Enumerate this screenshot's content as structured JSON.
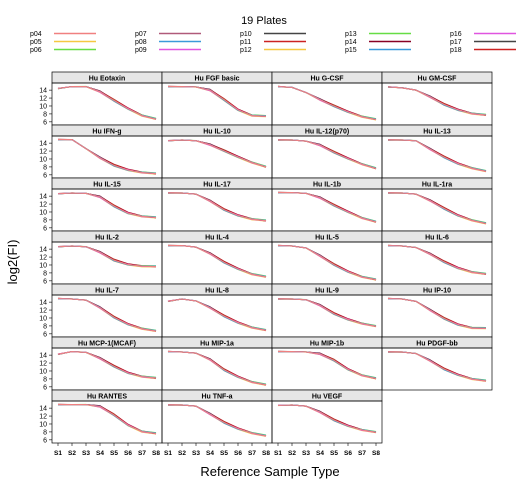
{
  "chart_data": {
    "type": "line",
    "title": "19 Plates",
    "xlabel": "Reference Sample Type",
    "ylabel": "log2(FI)",
    "x": [
      "S1",
      "S2",
      "S3",
      "S4",
      "S5",
      "S6",
      "S7",
      "S8"
    ],
    "yticks": [
      6,
      8,
      10,
      12,
      14
    ],
    "ylim": [
      5.2,
      15.8
    ],
    "legend_position": "top",
    "grid": false,
    "legend": [
      {
        "name": "p04",
        "color": "#f08080"
      },
      {
        "name": "p05",
        "color": "#f5c842"
      },
      {
        "name": "p06",
        "color": "#66dd44"
      },
      {
        "name": "p07",
        "color": "#b05a7a"
      },
      {
        "name": "p08",
        "color": "#3a9ad9"
      },
      {
        "name": "p09",
        "color": "#e055e0"
      },
      {
        "name": "p10",
        "color": "#444444"
      },
      {
        "name": "p11",
        "color": "#cc2222"
      },
      {
        "name": "p12",
        "color": "#f5c842"
      },
      {
        "name": "p13",
        "color": "#66dd44"
      },
      {
        "name": "p14",
        "color": "#880022"
      },
      {
        "name": "p15",
        "color": "#3a9ad9"
      },
      {
        "name": "p16",
        "color": "#e055e0"
      },
      {
        "name": "p17",
        "color": "#444444"
      },
      {
        "name": "p18",
        "color": "#cc2222"
      }
    ],
    "panels": [
      {
        "name": "Hu Eotaxin",
        "values": [
          14.4,
          14.9,
          14.9,
          13.6,
          11.4,
          9.3,
          7.6,
          6.7
        ]
      },
      {
        "name": "Hu FGF basic",
        "values": [
          14.9,
          14.9,
          14.8,
          14.0,
          11.6,
          9.0,
          7.6,
          7.4
        ]
      },
      {
        "name": "Hu G-CSF",
        "values": [
          14.9,
          14.7,
          13.4,
          11.6,
          10.0,
          8.5,
          7.3,
          6.6
        ]
      },
      {
        "name": "Hu GM-CSF",
        "values": [
          14.8,
          14.6,
          14.0,
          12.3,
          10.4,
          9.0,
          8.1,
          7.7
        ]
      },
      {
        "name": "Hu IFN-g",
        "values": [
          14.9,
          14.9,
          12.6,
          10.3,
          8.4,
          7.2,
          6.6,
          6.3
        ]
      },
      {
        "name": "Hu IL-10",
        "values": [
          14.6,
          14.8,
          14.6,
          13.6,
          12.1,
          10.5,
          9.1,
          8.0
        ]
      },
      {
        "name": "Hu IL-12(p70)",
        "values": [
          14.8,
          14.8,
          14.5,
          13.5,
          11.7,
          10.1,
          8.7,
          7.6
        ]
      },
      {
        "name": "Hu IL-13",
        "values": [
          14.8,
          14.8,
          14.6,
          12.5,
          10.5,
          8.8,
          7.7,
          6.9
        ]
      },
      {
        "name": "Hu IL-15",
        "values": [
          14.6,
          14.8,
          14.7,
          13.8,
          11.5,
          9.7,
          8.9,
          8.6
        ]
      },
      {
        "name": "Hu IL-17",
        "values": [
          14.8,
          14.8,
          14.5,
          12.8,
          10.6,
          9.1,
          8.2,
          7.8
        ]
      },
      {
        "name": "Hu IL-1b",
        "values": [
          14.9,
          14.9,
          14.7,
          13.6,
          11.7,
          10.0,
          8.5,
          7.5
        ]
      },
      {
        "name": "Hu IL-1ra",
        "values": [
          14.8,
          14.8,
          14.5,
          12.9,
          10.9,
          9.1,
          7.9,
          7.1
        ]
      },
      {
        "name": "Hu IL-2",
        "values": [
          14.6,
          14.8,
          14.6,
          13.2,
          11.2,
          10.1,
          9.7,
          9.6
        ]
      },
      {
        "name": "Hu IL-4",
        "values": [
          14.9,
          14.9,
          14.5,
          12.9,
          10.7,
          9.0,
          7.7,
          7.0
        ]
      },
      {
        "name": "Hu IL-5",
        "values": [
          14.9,
          14.8,
          14.3,
          12.3,
          10.1,
          8.3,
          7.0,
          6.3
        ]
      },
      {
        "name": "Hu IL-6",
        "values": [
          14.9,
          14.8,
          14.4,
          12.8,
          10.8,
          9.2,
          8.2,
          7.7
        ]
      },
      {
        "name": "Hu IL-7",
        "values": [
          14.9,
          14.8,
          14.5,
          12.6,
          10.2,
          8.4,
          7.3,
          6.7
        ]
      },
      {
        "name": "Hu IL-8",
        "values": [
          14.2,
          14.8,
          14.3,
          12.6,
          10.5,
          8.8,
          7.6,
          6.9
        ]
      },
      {
        "name": "Hu IL-9",
        "values": [
          14.8,
          14.8,
          14.6,
          13.2,
          11.1,
          9.6,
          8.6,
          7.9
        ]
      },
      {
        "name": "Hu IP-10",
        "values": [
          14.9,
          14.8,
          14.2,
          12.0,
          9.9,
          8.3,
          7.5,
          7.4
        ]
      },
      {
        "name": "Hu MCP-1(MCAF)",
        "values": [
          14.2,
          14.9,
          14.7,
          13.2,
          11.2,
          9.5,
          8.6,
          8.2
        ]
      },
      {
        "name": "Hu MIP-1a",
        "values": [
          14.9,
          14.8,
          14.5,
          12.9,
          10.3,
          8.5,
          7.2,
          6.5
        ]
      },
      {
        "name": "Hu MIP-1b",
        "values": [
          14.9,
          14.9,
          14.8,
          14.3,
          12.7,
          10.4,
          8.9,
          8.1
        ]
      },
      {
        "name": "Hu PDGF-bb",
        "values": [
          14.8,
          14.8,
          14.4,
          12.6,
          10.5,
          9.0,
          8.0,
          7.5
        ]
      },
      {
        "name": "Hu RANTES",
        "values": [
          14.9,
          14.9,
          14.9,
          14.4,
          12.3,
          9.7,
          8.1,
          7.6
        ]
      },
      {
        "name": "Hu TNF-a",
        "values": [
          14.8,
          14.8,
          14.5,
          12.5,
          10.4,
          8.8,
          7.7,
          7.0
        ]
      },
      {
        "name": "Hu VEGF",
        "values": [
          14.7,
          14.8,
          14.5,
          13.0,
          11.0,
          9.5,
          8.5,
          7.9
        ]
      }
    ]
  }
}
